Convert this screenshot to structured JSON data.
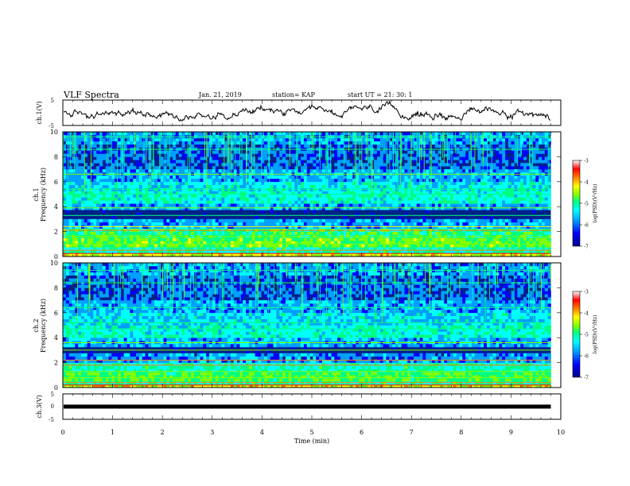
{
  "header": {
    "title": "VLF Spectra",
    "date": "Jan. 21, 2019",
    "station": "station= KAP",
    "start": "start  UT =   21: 30: 1"
  },
  "chart_data": [
    {
      "type": "line",
      "panel": "ch1-waveform",
      "ylabel": "ch.1(V)",
      "ylim": [
        -5,
        5
      ],
      "yticks": [
        "5",
        "-5"
      ],
      "xlim": [
        0,
        10
      ],
      "note": "noisy waveform mostly between about -3 and 3 V"
    },
    {
      "type": "heatmap",
      "panel": "ch1-spectrogram",
      "ylabel": "ch.1",
      "ylabel2": "Frequency (kHz)",
      "ylim": [
        0,
        10
      ],
      "yticks": [
        "0",
        "2",
        "4",
        "6",
        "8",
        "10"
      ],
      "xlim": [
        0,
        10
      ],
      "data_extent_min": 9.8
    },
    {
      "type": "heatmap",
      "panel": "ch2-spectrogram",
      "ylabel": "ch.2",
      "ylabel2": "Frequency (kHz)",
      "ylim": [
        0,
        10
      ],
      "yticks": [
        "0",
        "2",
        "4",
        "6",
        "8",
        "10"
      ],
      "xlim": [
        0,
        10
      ],
      "data_extent_min": 9.8
    },
    {
      "type": "line",
      "panel": "ch3-waveform",
      "ylabel": "ch.3(V)",
      "ylim": [
        -5,
        5
      ],
      "yticks": [
        "5",
        "0",
        "-5"
      ],
      "xlim": [
        0,
        10
      ],
      "flat_value": 0
    }
  ],
  "xaxis": {
    "label": "Time  (min)",
    "ticks": [
      "0",
      "1",
      "2",
      "3",
      "4",
      "5",
      "6",
      "7",
      "8",
      "9",
      "10"
    ]
  },
  "colorbar": {
    "label": "log(PSD)(V²/Hz)",
    "ticks": [
      "-3",
      "-4",
      "-5",
      "-6",
      "-7"
    ],
    "range": [
      -7,
      -3
    ],
    "colors": [
      "#00008b",
      "#0000ff",
      "#00a0ff",
      "#00ffff",
      "#00ff80",
      "#80ff00",
      "#ffff00",
      "#ff8000",
      "#ff0000",
      "#ffffff"
    ]
  }
}
